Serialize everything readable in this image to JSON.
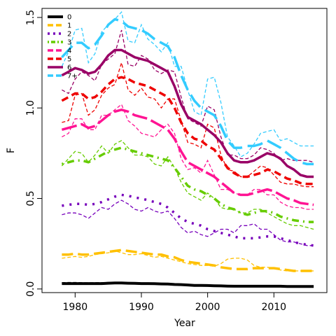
{
  "chart_data": {
    "type": "line",
    "title": "",
    "xlabel": "Year",
    "ylabel": "F",
    "xlim": [
      1975,
      2018
    ],
    "ylim": [
      -0.02,
      1.55
    ],
    "x_ticks": [
      1980,
      1990,
      2000,
      2010
    ],
    "y_ticks": [
      0.0,
      0.5,
      1.0,
      1.5
    ],
    "y_tick_labels": [
      "0.0",
      "0.5",
      "1.0",
      "1.5"
    ],
    "grid": false,
    "legend": "top-left",
    "x": [
      1978,
      1979,
      1980,
      1981,
      1982,
      1983,
      1984,
      1985,
      1986,
      1987,
      1988,
      1989,
      1990,
      1991,
      1992,
      1993,
      1994,
      1995,
      1996,
      1997,
      1998,
      1999,
      2000,
      2001,
      2002,
      2003,
      2004,
      2005,
      2006,
      2007,
      2008,
      2009,
      2010,
      2011,
      2012,
      2013,
      2014,
      2015,
      2016
    ],
    "series": [
      {
        "name": "0",
        "color": "#000000",
        "values": [
          0.03,
          0.03,
          0.03,
          0.03,
          0.03,
          0.03,
          0.03,
          0.032,
          0.033,
          0.033,
          0.032,
          0.031,
          0.03,
          0.03,
          0.029,
          0.028,
          0.027,
          0.025,
          0.024,
          0.022,
          0.02,
          0.02,
          0.019,
          0.018,
          0.017,
          0.016,
          0.015,
          0.015,
          0.015,
          0.015,
          0.015,
          0.015,
          0.015,
          0.015,
          0.014,
          0.014,
          0.014,
          0.014,
          0.014
        ]
      },
      {
        "name": "1",
        "color": "#FFC000",
        "values": [
          0.19,
          0.19,
          0.195,
          0.19,
          0.19,
          0.195,
          0.2,
          0.205,
          0.21,
          0.215,
          0.21,
          0.205,
          0.2,
          0.195,
          0.19,
          0.19,
          0.18,
          0.175,
          0.16,
          0.15,
          0.145,
          0.14,
          0.135,
          0.13,
          0.12,
          0.115,
          0.11,
          0.11,
          0.11,
          0.115,
          0.115,
          0.115,
          0.115,
          0.11,
          0.105,
          0.1,
          0.1,
          0.1,
          0.1
        ]
      },
      {
        "name": "2",
        "color": "#7700BB",
        "values": [
          0.46,
          0.465,
          0.47,
          0.47,
          0.465,
          0.47,
          0.48,
          0.495,
          0.51,
          0.52,
          0.515,
          0.505,
          0.5,
          0.49,
          0.48,
          0.47,
          0.45,
          0.42,
          0.39,
          0.37,
          0.36,
          0.35,
          0.33,
          0.32,
          0.31,
          0.3,
          0.29,
          0.28,
          0.28,
          0.28,
          0.285,
          0.29,
          0.29,
          0.28,
          0.27,
          0.26,
          0.25,
          0.245,
          0.24
        ]
      },
      {
        "name": "3",
        "color": "#66CC00",
        "values": [
          0.69,
          0.7,
          0.71,
          0.71,
          0.7,
          0.72,
          0.74,
          0.76,
          0.77,
          0.78,
          0.77,
          0.76,
          0.75,
          0.74,
          0.73,
          0.72,
          0.71,
          0.67,
          0.62,
          0.57,
          0.55,
          0.54,
          0.52,
          0.5,
          0.47,
          0.45,
          0.44,
          0.42,
          0.41,
          0.42,
          0.43,
          0.43,
          0.42,
          0.4,
          0.39,
          0.38,
          0.375,
          0.37,
          0.37
        ]
      },
      {
        "name": "4",
        "color": "#FF1493",
        "values": [
          0.88,
          0.89,
          0.9,
          0.91,
          0.89,
          0.9,
          0.93,
          0.96,
          0.98,
          0.99,
          0.98,
          0.96,
          0.95,
          0.94,
          0.92,
          0.9,
          0.88,
          0.83,
          0.76,
          0.7,
          0.68,
          0.66,
          0.64,
          0.62,
          0.59,
          0.56,
          0.53,
          0.52,
          0.52,
          0.53,
          0.54,
          0.55,
          0.54,
          0.52,
          0.5,
          0.49,
          0.475,
          0.47,
          0.465
        ]
      },
      {
        "name": "5",
        "color": "#EE0000",
        "values": [
          1.04,
          1.06,
          1.08,
          1.08,
          1.05,
          1.06,
          1.09,
          1.13,
          1.16,
          1.17,
          1.16,
          1.14,
          1.13,
          1.12,
          1.1,
          1.08,
          1.06,
          1.0,
          0.92,
          0.86,
          0.83,
          0.82,
          0.79,
          0.77,
          0.72,
          0.67,
          0.64,
          0.62,
          0.62,
          0.63,
          0.64,
          0.66,
          0.65,
          0.63,
          0.61,
          0.6,
          0.585,
          0.58,
          0.58
        ]
      },
      {
        "name": "6",
        "color": "#990066",
        "values": [
          1.18,
          1.2,
          1.22,
          1.21,
          1.19,
          1.2,
          1.24,
          1.29,
          1.32,
          1.32,
          1.3,
          1.28,
          1.27,
          1.26,
          1.24,
          1.22,
          1.2,
          1.12,
          1.02,
          0.95,
          0.93,
          0.91,
          0.88,
          0.85,
          0.81,
          0.75,
          0.71,
          0.7,
          0.7,
          0.71,
          0.73,
          0.75,
          0.74,
          0.72,
          0.68,
          0.66,
          0.63,
          0.62,
          0.62
        ]
      },
      {
        "name": "7+",
        "color": "#33CCFF",
        "values": [
          1.28,
          1.32,
          1.36,
          1.36,
          1.33,
          1.35,
          1.4,
          1.46,
          1.49,
          1.48,
          1.45,
          1.44,
          1.43,
          1.41,
          1.38,
          1.36,
          1.34,
          1.28,
          1.18,
          1.1,
          1.04,
          1.0,
          0.98,
          0.96,
          0.9,
          0.82,
          0.78,
          0.78,
          0.79,
          0.79,
          0.8,
          0.82,
          0.8,
          0.78,
          0.75,
          0.72,
          0.7,
          0.69,
          0.69
        ]
      }
    ],
    "dashed_series": [
      {
        "name": "0",
        "color": "#000000",
        "values": [
          0.035,
          0.036,
          0.036,
          0.035,
          0.034,
          0.035,
          0.035,
          0.036,
          0.036,
          0.035,
          0.034,
          0.033,
          0.032,
          0.031,
          0.03,
          0.029,
          0.028,
          0.026,
          0.025,
          0.023,
          0.021,
          0.02,
          0.02,
          0.019,
          0.018,
          0.017,
          0.016,
          0.016,
          0.016,
          0.016,
          0.016,
          0.016,
          0.016,
          0.015,
          0.015,
          0.015,
          0.015,
          0.015,
          0.015
        ]
      },
      {
        "name": "1",
        "color": "#FFC000",
        "values": [
          0.17,
          0.175,
          0.18,
          0.175,
          0.18,
          0.19,
          0.195,
          0.2,
          0.21,
          0.2,
          0.19,
          0.19,
          0.195,
          0.185,
          0.175,
          0.18,
          0.17,
          0.16,
          0.15,
          0.14,
          0.135,
          0.13,
          0.13,
          0.125,
          0.14,
          0.165,
          0.17,
          0.17,
          0.16,
          0.13,
          0.12,
          0.12,
          0.115,
          0.105,
          0.1,
          0.1,
          0.1,
          0.1,
          0.1
        ]
      },
      {
        "name": "2",
        "color": "#7700BB",
        "values": [
          0.41,
          0.42,
          0.42,
          0.41,
          0.39,
          0.42,
          0.45,
          0.44,
          0.47,
          0.49,
          0.47,
          0.44,
          0.43,
          0.45,
          0.43,
          0.42,
          0.43,
          0.39,
          0.34,
          0.31,
          0.32,
          0.3,
          0.29,
          0.31,
          0.33,
          0.33,
          0.31,
          0.35,
          0.35,
          0.36,
          0.33,
          0.33,
          0.3,
          0.27,
          0.26,
          0.26,
          0.25,
          0.24,
          0.24
        ]
      },
      {
        "name": "3",
        "color": "#66CC00",
        "values": [
          0.68,
          0.72,
          0.76,
          0.75,
          0.7,
          0.74,
          0.79,
          0.75,
          0.8,
          0.82,
          0.78,
          0.74,
          0.74,
          0.73,
          0.69,
          0.68,
          0.73,
          0.67,
          0.59,
          0.53,
          0.51,
          0.49,
          0.53,
          0.5,
          0.45,
          0.44,
          0.44,
          0.42,
          0.42,
          0.44,
          0.44,
          0.42,
          0.4,
          0.38,
          0.36,
          0.35,
          0.35,
          0.34,
          0.33
        ]
      },
      {
        "name": "4",
        "color": "#FF1493",
        "values": [
          0.84,
          0.86,
          0.94,
          0.94,
          0.88,
          0.88,
          0.96,
          0.96,
          0.99,
          1.02,
          0.93,
          0.9,
          0.86,
          0.85,
          0.84,
          0.88,
          0.91,
          0.86,
          0.72,
          0.66,
          0.67,
          0.64,
          0.71,
          0.63,
          0.55,
          0.55,
          0.53,
          0.52,
          0.52,
          0.55,
          0.55,
          0.52,
          0.52,
          0.48,
          0.46,
          0.45,
          0.45,
          0.44,
          0.44
        ]
      },
      {
        "name": "5",
        "color": "#EE0000",
        "values": [
          0.92,
          0.93,
          1.07,
          1.08,
          0.96,
          0.99,
          1.07,
          1.11,
          1.13,
          1.25,
          1.1,
          1.07,
          1.11,
          1.06,
          1.05,
          1.0,
          1.05,
          1.05,
          0.93,
          0.81,
          0.8,
          0.78,
          0.91,
          0.89,
          0.74,
          0.66,
          0.65,
          0.62,
          0.62,
          0.65,
          0.68,
          0.67,
          0.63,
          0.59,
          0.58,
          0.58,
          0.57,
          0.565,
          0.565
        ]
      },
      {
        "name": "6",
        "color": "#990066",
        "values": [
          1.1,
          1.08,
          1.16,
          1.2,
          1.18,
          1.15,
          1.24,
          1.27,
          1.3,
          1.43,
          1.24,
          1.23,
          1.29,
          1.27,
          1.21,
          1.19,
          1.21,
          1.2,
          1.06,
          0.94,
          0.92,
          0.9,
          1.01,
          0.99,
          0.84,
          0.74,
          0.74,
          0.72,
          0.72,
          0.74,
          0.78,
          0.77,
          0.75,
          0.71,
          0.72,
          0.71,
          0.71,
          0.71,
          0.7
        ]
      },
      {
        "name": "7+",
        "color": "#33CCFF",
        "values": [
          1.23,
          1.31,
          1.43,
          1.44,
          1.25,
          1.3,
          1.42,
          1.46,
          1.49,
          1.53,
          1.37,
          1.36,
          1.46,
          1.38,
          1.35,
          1.31,
          1.36,
          1.23,
          1.23,
          1.1,
          0.98,
          0.96,
          1.16,
          1.17,
          1.03,
          0.84,
          0.79,
          0.73,
          0.75,
          0.8,
          0.86,
          0.87,
          0.88,
          0.82,
          0.83,
          0.81,
          0.79,
          0.79,
          0.79
        ]
      }
    ]
  }
}
